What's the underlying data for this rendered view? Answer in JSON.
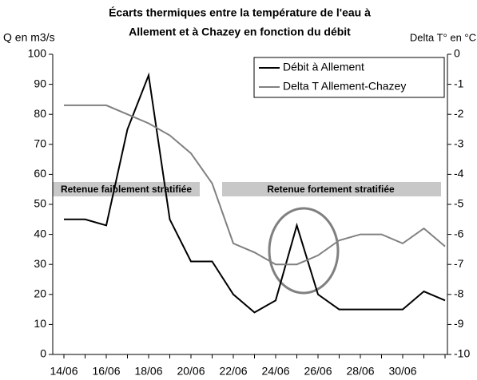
{
  "chart_data": {
    "type": "line",
    "title": [
      "Écarts thermiques entre la température de l'eau à",
      "Allement et à Chazey en fonction du débit"
    ],
    "ylabel": "Q en m3/s",
    "y2label": "Delta T° en °C",
    "categories": [
      "14/06",
      null,
      "16/06",
      null,
      "18/06",
      null,
      "20/06",
      null,
      "22/06",
      null,
      "24/06",
      null,
      "26/06",
      null,
      "28/06",
      null,
      "30/06",
      null,
      null
    ],
    "series": [
      {
        "name": "Débit à Allement",
        "color": "#000000",
        "values": [
          45,
          45,
          43,
          75,
          93,
          45,
          31,
          31,
          20,
          14,
          18,
          43,
          20,
          15,
          15,
          15,
          15,
          21,
          18
        ]
      },
      {
        "name": "Delta T Allement-Chazey",
        "color": "#808080",
        "axis": "y2",
        "values": [
          -1.7,
          -1.7,
          -1.7,
          -2.0,
          -2.3,
          -2.7,
          -3.3,
          -4.3,
          -6.3,
          -6.6,
          -7.0,
          -7.0,
          -6.7,
          -6.2,
          -6.0,
          -6.0,
          -6.3,
          -5.8,
          -6.4
        ]
      }
    ],
    "ylim": [
      0,
      100
    ],
    "yticks": [
      0,
      10,
      20,
      30,
      40,
      50,
      60,
      70,
      80,
      90,
      100
    ],
    "y2lim": [
      -10,
      0
    ],
    "y2ticks": [
      0,
      -1,
      -2,
      -3,
      -4,
      -5,
      -6,
      -7,
      -8,
      -9,
      -10
    ],
    "legend": "upper right",
    "grid": false,
    "annotations": [
      "Retenue faiblement stratifiée",
      "Retenue fortement stratifiée"
    ]
  }
}
